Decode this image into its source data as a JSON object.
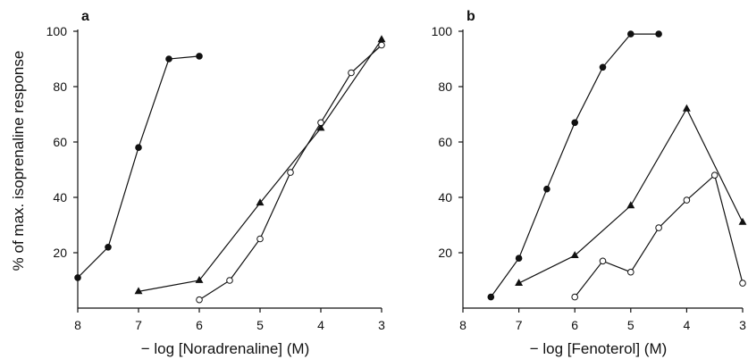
{
  "chart_data": [
    {
      "type": "line",
      "panel_label": "a",
      "xlabel": "− log [Noradrenaline] (M)",
      "ylabel": "% of max. isoprenaline response",
      "xlim": [
        8,
        3
      ],
      "ylim": [
        0,
        100
      ],
      "xticks": [
        8,
        7,
        6,
        5,
        4,
        3
      ],
      "yticks": [
        20,
        40,
        60,
        80,
        100
      ],
      "series": [
        {
          "marker": "filled-circle",
          "x": [
            8,
            7.5,
            7,
            6.5,
            6
          ],
          "y": [
            11,
            22,
            58,
            90,
            91
          ]
        },
        {
          "marker": "filled-triangle",
          "x": [
            7,
            6,
            5,
            4,
            3
          ],
          "y": [
            6,
            10,
            38,
            65,
            97
          ]
        },
        {
          "marker": "open-circle",
          "x": [
            6,
            5.5,
            5,
            4.5,
            4,
            3.5,
            3
          ],
          "y": [
            3,
            10,
            25,
            49,
            67,
            85,
            95
          ]
        }
      ]
    },
    {
      "type": "line",
      "panel_label": "b",
      "xlabel": "− log [Fenoterol] (M)",
      "ylabel": "",
      "xlim": [
        8,
        3
      ],
      "ylim": [
        0,
        100
      ],
      "xticks": [
        8,
        7,
        6,
        5,
        4,
        3
      ],
      "yticks": [
        20,
        40,
        60,
        80,
        100
      ],
      "series": [
        {
          "marker": "filled-circle",
          "x": [
            7.5,
            7,
            6.5,
            6,
            5.5,
            5,
            4.5
          ],
          "y": [
            4,
            18,
            43,
            67,
            87,
            99,
            99
          ]
        },
        {
          "marker": "filled-triangle",
          "x": [
            7,
            6,
            5,
            4,
            3
          ],
          "y": [
            9,
            19,
            37,
            72,
            31
          ]
        },
        {
          "marker": "open-circle",
          "x": [
            6,
            5.5,
            5,
            4.5,
            4,
            3.5,
            3
          ],
          "y": [
            4,
            17,
            13,
            29,
            39,
            48,
            9
          ]
        }
      ]
    }
  ]
}
